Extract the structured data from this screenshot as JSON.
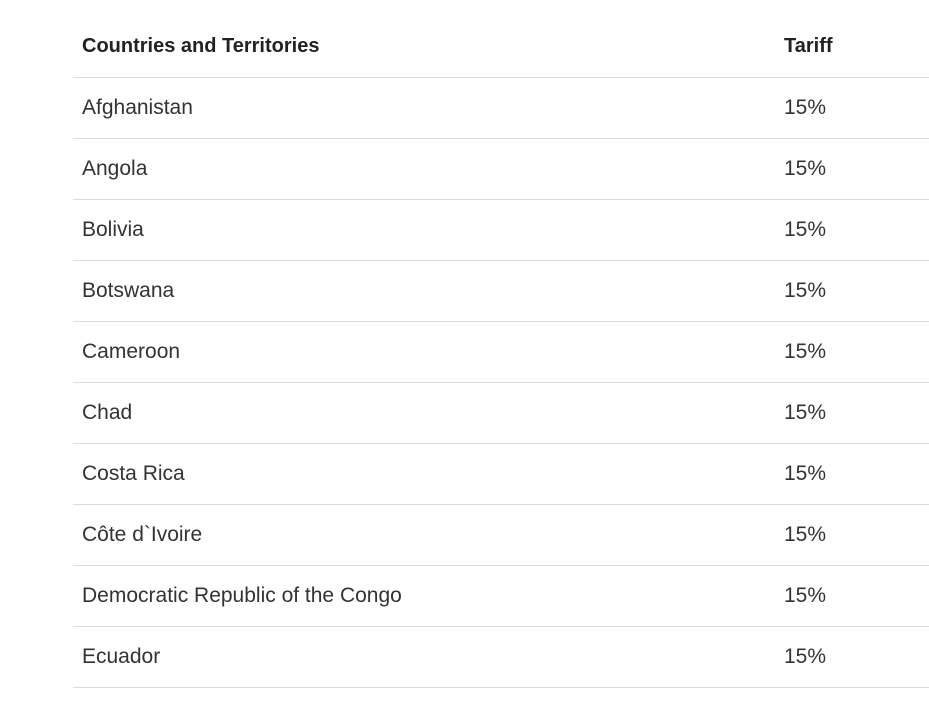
{
  "table": {
    "headers": {
      "country": "Countries and Territories",
      "tariff": "Tariff"
    },
    "rows": [
      {
        "country": "Afghanistan",
        "tariff": "15%"
      },
      {
        "country": "Angola",
        "tariff": "15%"
      },
      {
        "country": "Bolivia",
        "tariff": "15%"
      },
      {
        "country": "Botswana",
        "tariff": "15%"
      },
      {
        "country": "Cameroon",
        "tariff": "15%"
      },
      {
        "country": "Chad",
        "tariff": "15%"
      },
      {
        "country": "Costa Rica",
        "tariff": "15%"
      },
      {
        "country": "Côte d`Ivoire",
        "tariff": "15%"
      },
      {
        "country": "Democratic Republic of the Congo",
        "tariff": "15%"
      },
      {
        "country": "Ecuador",
        "tariff": "15%"
      }
    ]
  }
}
